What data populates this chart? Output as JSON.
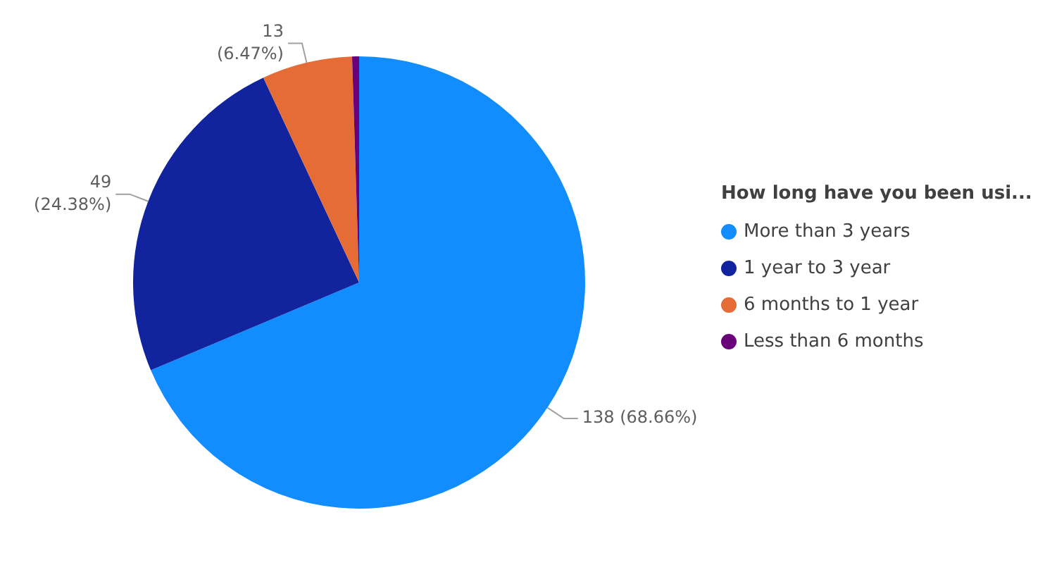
{
  "chart_data": {
    "type": "pie",
    "legend_title": "How long have you been usi...",
    "legend": "right",
    "categories": [
      "More than 3 years",
      "1 year to 3 year",
      "6 months to 1 year",
      "Less than 6 months"
    ],
    "values": [
      138,
      49,
      13,
      1
    ],
    "colors": [
      "#118dff",
      "#12239e",
      "#e66c37",
      "#6b007b"
    ],
    "value_labels": [
      "138 (68.66%)",
      "49 (24.38%)",
      "13 (6.47%)",
      null
    ]
  }
}
